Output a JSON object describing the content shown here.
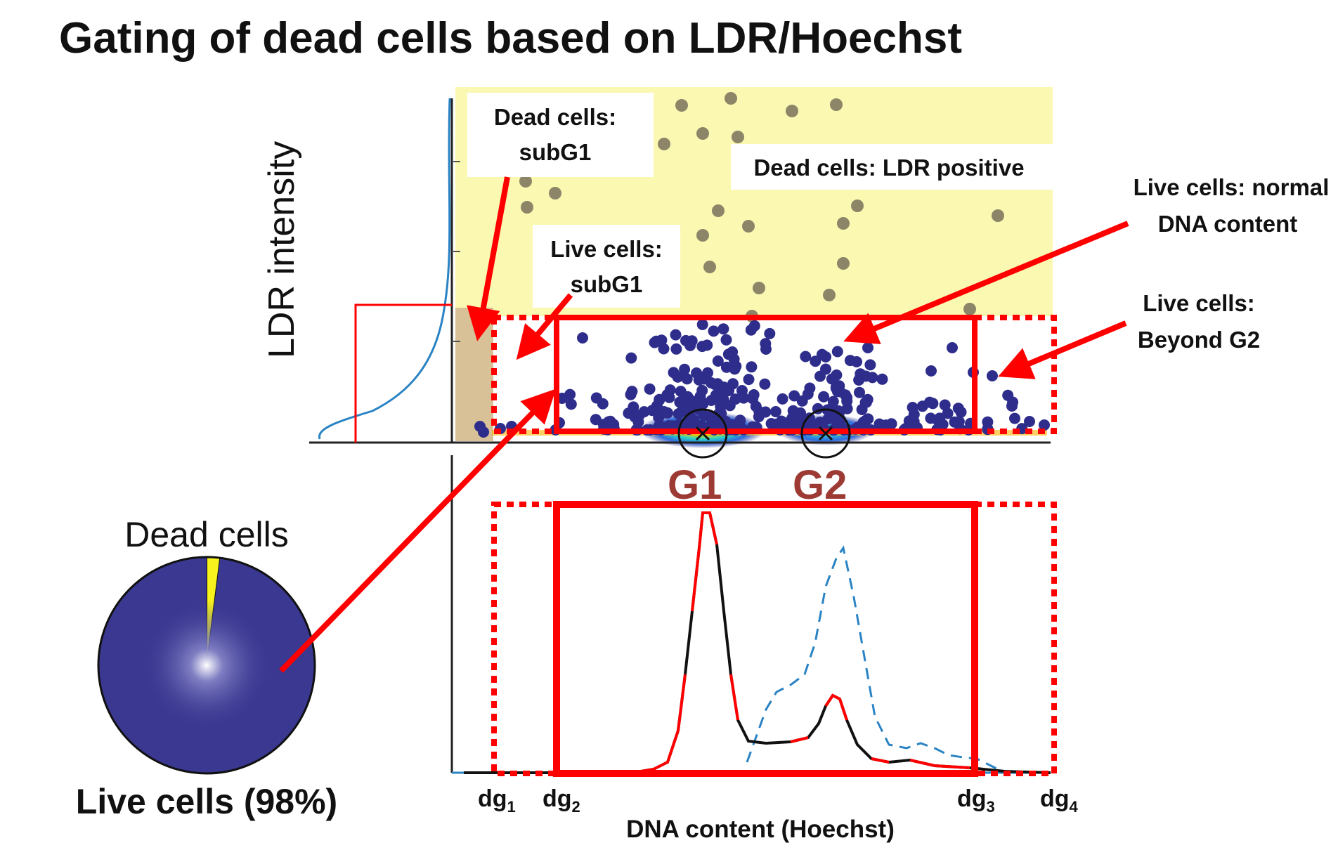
{
  "title": "Gating of dead cells based on LDR/Hoechst",
  "labels": {
    "dead_subg1_line1": "Dead cells:",
    "dead_subg1_line2": "subG1",
    "dead_ldr_positive": "Dead cells: LDR positive",
    "live_subg1_line1": "Live cells:",
    "live_subg1_line2": "subG1",
    "live_normal_line1": "Live cells: normal",
    "live_normal_line2": "DNA content",
    "live_beyond_line1": "Live cells:",
    "live_beyond_line2": "Beyond G2",
    "y_axis": "LDR intensity",
    "x_axis": "DNA  content (Hoechst)",
    "g1": "G1",
    "g2": "G2"
  },
  "gates": [
    {
      "name": "dg",
      "sub": "1"
    },
    {
      "name": "dg",
      "sub": "2"
    },
    {
      "name": "dg",
      "sub": "3"
    },
    {
      "name": "dg",
      "sub": "4"
    }
  ],
  "pie": {
    "top_label": "Dead cells",
    "bottom_label": "Live cells (98%)"
  },
  "chart_data": {
    "type": "pie",
    "title": "",
    "categories": [
      "Dead cells",
      "Live cells"
    ],
    "values": [
      2,
      98
    ],
    "colors": [
      "#f7f21e",
      "#3a3891"
    ]
  },
  "colors": {
    "gate_red": "#ff0000",
    "dead_region": "#fbf8b2",
    "subg1_region": "#d8c197",
    "live_dots": "#2e2d8c",
    "dead_dots": "#8c8568",
    "histogram_blue": "#2a83c4",
    "g_label": "#9c3a33"
  }
}
